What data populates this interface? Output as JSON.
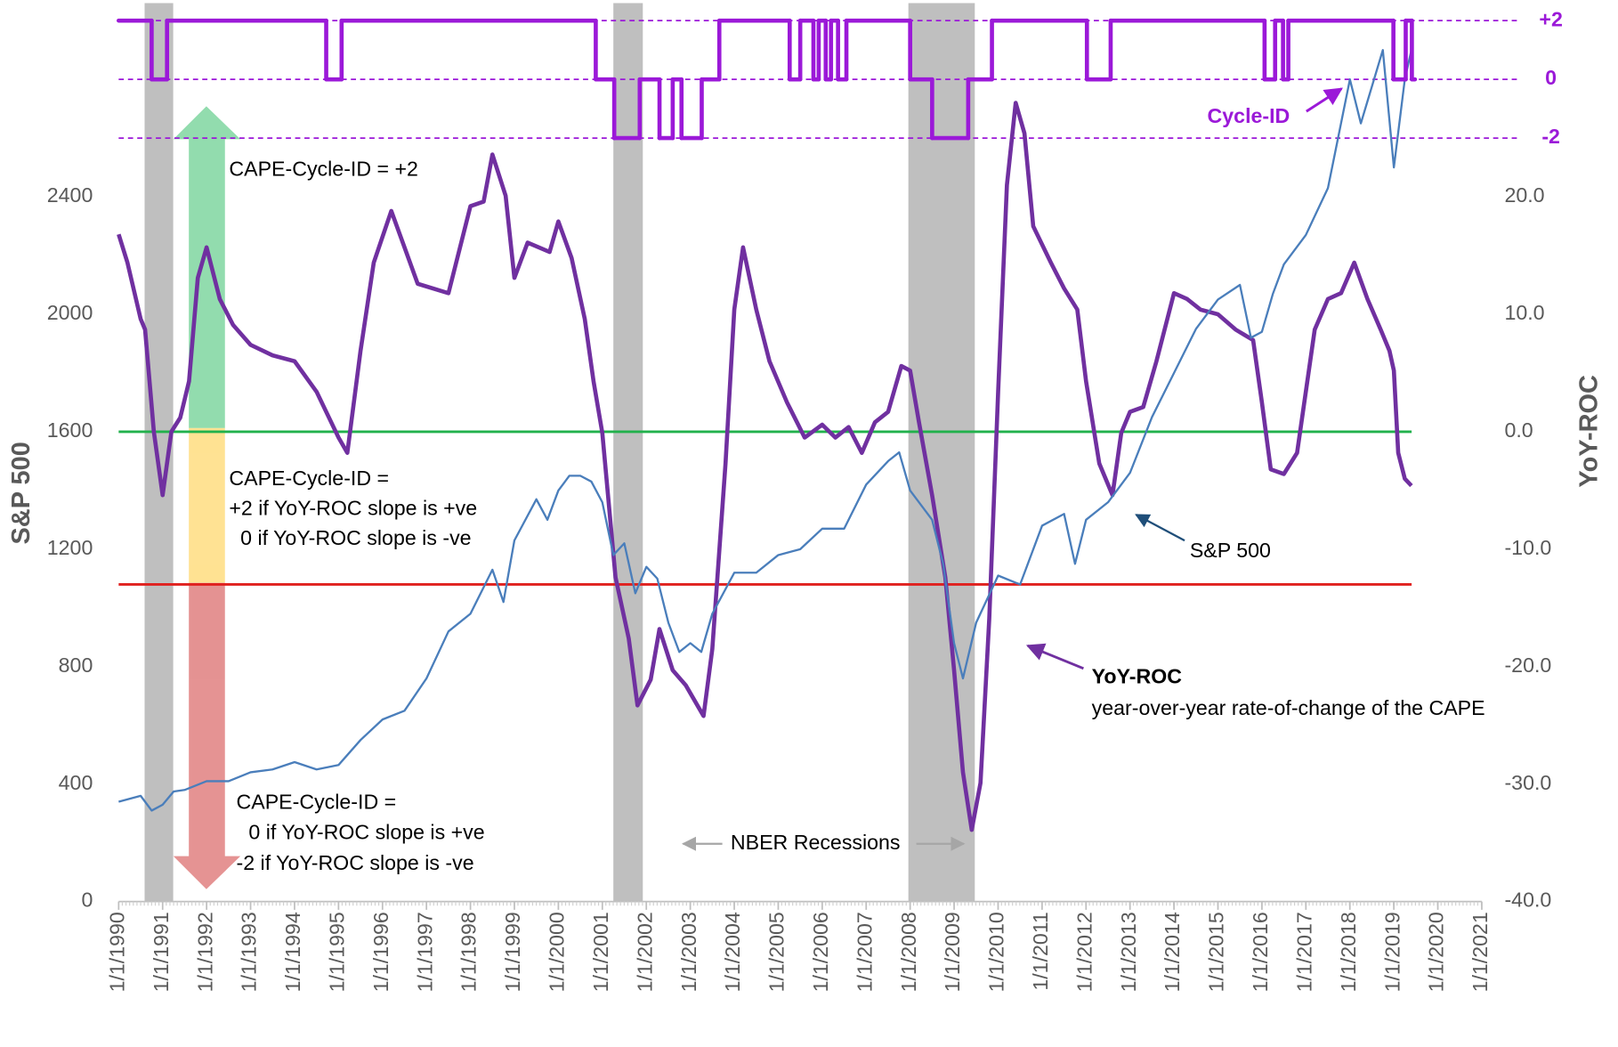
{
  "chart_data": {
    "type": "line",
    "xlim": [
      1990,
      2021
    ],
    "xticks": [
      {
        "value": 1990,
        "label": "1/1/1990"
      },
      {
        "value": 1991,
        "label": "1/1/1991"
      },
      {
        "value": 1992,
        "label": "1/1/1992"
      },
      {
        "value": 1993,
        "label": "1/1/1993"
      },
      {
        "value": 1994,
        "label": "1/1/1994"
      },
      {
        "value": 1995,
        "label": "1/1/1995"
      },
      {
        "value": 1996,
        "label": "1/1/1996"
      },
      {
        "value": 1997,
        "label": "1/1/1997"
      },
      {
        "value": 1998,
        "label": "1/1/1998"
      },
      {
        "value": 1999,
        "label": "1/1/1999"
      },
      {
        "value": 2000,
        "label": "1/1/2000"
      },
      {
        "value": 2001,
        "label": "1/1/2001"
      },
      {
        "value": 2002,
        "label": "1/1/2002"
      },
      {
        "value": 2003,
        "label": "1/1/2003"
      },
      {
        "value": 2004,
        "label": "1/1/2004"
      },
      {
        "value": 2005,
        "label": "1/1/2005"
      },
      {
        "value": 2006,
        "label": "1/1/2006"
      },
      {
        "value": 2007,
        "label": "1/1/2007"
      },
      {
        "value": 2008,
        "label": "1/1/2008"
      },
      {
        "value": 2009,
        "label": "1/1/2009"
      },
      {
        "value": 2010,
        "label": "1/1/2010"
      },
      {
        "value": 2011,
        "label": "1/1/2011"
      },
      {
        "value": 2012,
        "label": "1/1/2012"
      },
      {
        "value": 2013,
        "label": "1/1/2013"
      },
      {
        "value": 2014,
        "label": "1/1/2014"
      },
      {
        "value": 2015,
        "label": "1/1/2015"
      },
      {
        "value": 2016,
        "label": "1/1/2016"
      },
      {
        "value": 2017,
        "label": "1/1/2017"
      },
      {
        "value": 2018,
        "label": "1/1/2018"
      },
      {
        "value": 2019,
        "label": "1/1/2019"
      },
      {
        "value": 2020,
        "label": "1/1/2020"
      },
      {
        "value": 2021,
        "label": "1/1/2021"
      }
    ],
    "ylabel": "S&P 500",
    "ylim": [
      0,
      3000
    ],
    "yticks": [
      0,
      400,
      800,
      1200,
      1600,
      2000,
      2400
    ],
    "y2label": "YoY-ROC",
    "y2lim": [
      -40,
      35
    ],
    "y2ticks": [
      {
        "value": -40,
        "label": "-40.0"
      },
      {
        "value": -30,
        "label": "-30.0"
      },
      {
        "value": -20,
        "label": "-20.0"
      },
      {
        "value": -10,
        "label": "-10.0"
      },
      {
        "value": 0,
        "label": "0.0"
      },
      {
        "value": 10,
        "label": "10.0"
      },
      {
        "value": 20,
        "label": "20.0"
      }
    ],
    "y3lim": [
      -28,
      2
    ],
    "y3ticks": [
      {
        "value": 2,
        "label": "+2"
      },
      0,
      -2
    ],
    "y3color": "#9b19d8",
    "series": [
      {
        "name": "S&P 500",
        "color": "#4a7ebb",
        "x": [
          1990.0,
          1990.5,
          1990.75,
          1991.0,
          1991.25,
          1991.5,
          1992.0,
          1992.5,
          1993.0,
          1993.5,
          1994.0,
          1994.5,
          1995.0,
          1995.5,
          1996.0,
          1996.5,
          1997.0,
          1997.5,
          1998.0,
          1998.5,
          1998.75,
          1999.0,
          1999.5,
          1999.75,
          2000.0,
          2000.25,
          2000.5,
          2000.75,
          2001.0,
          2001.25,
          2001.5,
          2001.75,
          2002.0,
          2002.25,
          2002.5,
          2002.75,
          2003.0,
          2003.25,
          2003.5,
          2004.0,
          2004.5,
          2005.0,
          2005.5,
          2006.0,
          2006.5,
          2007.0,
          2007.5,
          2007.75,
          2008.0,
          2008.5,
          2008.75,
          2009.0,
          2009.2,
          2009.5,
          2010.0,
          2010.5,
          2011.0,
          2011.5,
          2011.75,
          2012.0,
          2012.5,
          2013.0,
          2013.5,
          2014.0,
          2014.5,
          2015.0,
          2015.5,
          2015.75,
          2016.0,
          2016.25,
          2016.5,
          2017.0,
          2017.5,
          2018.0,
          2018.25,
          2018.75,
          2019.0,
          2019.25,
          2019.4
        ],
        "values": [
          340,
          360,
          310,
          330,
          375,
          380,
          410,
          410,
          440,
          450,
          475,
          450,
          465,
          550,
          620,
          650,
          760,
          920,
          980,
          1130,
          1020,
          1230,
          1370,
          1300,
          1400,
          1450,
          1450,
          1430,
          1360,
          1180,
          1220,
          1050,
          1140,
          1100,
          950,
          850,
          880,
          850,
          980,
          1120,
          1120,
          1180,
          1200,
          1270,
          1270,
          1420,
          1500,
          1530,
          1400,
          1300,
          1150,
          880,
          760,
          950,
          1110,
          1080,
          1280,
          1320,
          1150,
          1300,
          1360,
          1460,
          1650,
          1800,
          1950,
          2050,
          2100,
          1920,
          1940,
          2070,
          2170,
          2270,
          2430,
          2800,
          2650,
          2900,
          2500,
          2800,
          2900
        ]
      },
      {
        "name": "YoY-ROC",
        "color": "#7030a0",
        "axis": "y2",
        "x": [
          1990.0,
          1990.2,
          1990.5,
          1990.6,
          1990.8,
          1991.0,
          1991.2,
          1991.4,
          1991.6,
          1991.8,
          1992.0,
          1992.3,
          1992.6,
          1993.0,
          1993.5,
          1994.0,
          1994.5,
          1995.0,
          1995.2,
          1995.5,
          1995.8,
          1996.2,
          1996.5,
          1996.8,
          1997.5,
          1998.0,
          1998.3,
          1998.5,
          1998.8,
          1999.0,
          1999.3,
          1999.8,
          2000.0,
          2000.3,
          2000.6,
          2000.8,
          2001.0,
          2001.3,
          2001.6,
          2001.8,
          2002.1,
          2002.3,
          2002.6,
          2002.9,
          2003.3,
          2003.5,
          2003.8,
          2004.0,
          2004.2,
          2004.5,
          2004.8,
          2005.2,
          2005.6,
          2006.0,
          2006.3,
          2006.6,
          2006.9,
          2007.2,
          2007.5,
          2007.8,
          2008.0,
          2008.2,
          2008.5,
          2008.8,
          2009.0,
          2009.2,
          2009.4,
          2009.6,
          2009.8,
          2010.0,
          2010.2,
          2010.4,
          2010.6,
          2010.8,
          2011.2,
          2011.5,
          2011.8,
          2012.0,
          2012.3,
          2012.6,
          2012.8,
          2013.0,
          2013.3,
          2013.6,
          2014.0,
          2014.3,
          2014.6,
          2015.0,
          2015.4,
          2015.8,
          2016.0,
          2016.2,
          2016.5,
          2016.8,
          2017.2,
          2017.5,
          2017.8,
          2018.1,
          2018.4,
          2018.7,
          2018.9,
          2019.0,
          2019.1,
          2019.25,
          2019.4
        ],
        "values": [
          16.8,
          14.4,
          9.6,
          8.7,
          0,
          -5.4,
          0,
          1.2,
          4.3,
          13.1,
          15.7,
          11.3,
          9.1,
          7.4,
          6.5,
          6,
          3.4,
          -0.5,
          -1.8,
          6.9,
          14.4,
          18.8,
          15.7,
          12.6,
          11.8,
          19.2,
          19.6,
          23.6,
          20.1,
          13.1,
          16.1,
          15.3,
          17.9,
          14.8,
          9.6,
          4.3,
          -0.1,
          -12.4,
          -17.6,
          -23.3,
          -21.1,
          -16.8,
          -20.3,
          -21.6,
          -24.2,
          -18.5,
          -2.7,
          10.4,
          15.7,
          10.4,
          6,
          2.5,
          -0.5,
          0.6,
          -0.5,
          0.4,
          -1.8,
          0.8,
          1.7,
          5.6,
          5.2,
          0.8,
          -5.4,
          -12.4,
          -20.3,
          -29,
          -33.9,
          -29.9,
          -15.9,
          3.4,
          21,
          28,
          25.4,
          17.5,
          14.4,
          12.2,
          10.4,
          4.3,
          -2.7,
          -5.4,
          -0.1,
          1.7,
          2.1,
          6,
          11.8,
          11.3,
          10.4,
          10,
          8.7,
          7.8,
          2.5,
          -3.2,
          -3.6,
          -1.8,
          8.7,
          11.3,
          11.8,
          14.4,
          11.3,
          8.7,
          6.9,
          5.2,
          -1.8,
          -4,
          -4.6
        ]
      },
      {
        "name": "Cycle-ID",
        "color": "#9b19d8",
        "axis": "y3",
        "step": true,
        "x": [
          1990.0,
          1990.75,
          1991.1,
          1994.72,
          1995.07,
          2000.85,
          2001.27,
          2001.85,
          2002.3,
          2002.6,
          2002.8,
          2003.26,
          2003.66,
          2005.26,
          2005.5,
          2005.8,
          2005.92,
          2006.08,
          2006.2,
          2006.36,
          2006.55,
          2008.0,
          2008.5,
          2009.32,
          2009.86,
          2012.02,
          2012.56,
          2016.06,
          2016.3,
          2016.48,
          2016.6,
          2018.99,
          2019.27,
          2019.41
        ],
        "values": [
          2,
          0,
          2,
          0,
          2,
          0,
          -2,
          0,
          -2,
          0,
          -2,
          0,
          2,
          0,
          2,
          0,
          2,
          0,
          2,
          0,
          2,
          0,
          -2,
          0,
          2,
          0,
          2,
          0,
          2,
          0,
          2,
          0,
          2,
          0
        ]
      }
    ],
    "recessions": {
      "label": "NBER Recessions",
      "color": "#bfbfbf",
      "spans": [
        [
          1990.59,
          1991.24
        ],
        [
          2001.25,
          2001.92
        ],
        [
          2007.96,
          2009.47
        ]
      ]
    },
    "reference_lines": [
      {
        "axis": "y2",
        "value": 0,
        "color": "#22b14c"
      },
      {
        "axis": "y2",
        "value": -13,
        "color": "#e0201e"
      }
    ],
    "annotations": {
      "zone_up": [
        "CAPE-Cycle-ID = +2"
      ],
      "zone_mid": [
        "CAPE-Cycle-ID =",
        "+2 if YoY-ROC slope is +ve",
        "0 if YoY-ROC slope is -ve"
      ],
      "zone_down": [
        "CAPE-Cycle-ID =",
        "0 if YoY-ROC slope is +ve",
        "-2 if YoY-ROC slope is -ve"
      ],
      "yoy_note": "year-over-year rate-of-change of the CAPE"
    }
  }
}
